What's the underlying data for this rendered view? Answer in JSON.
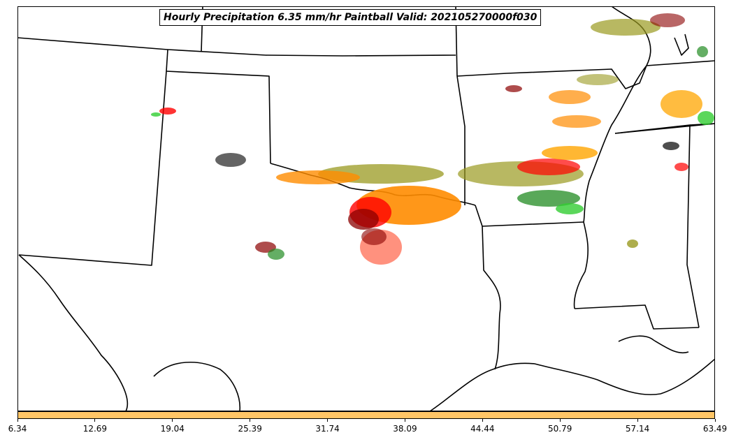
{
  "title": "Hourly Precipitation 6.35 mm/hr Paintball Valid: 202105270000f030",
  "colorbar": {
    "fill_color": "#ffc566",
    "tick_labels": [
      "6.34",
      "12.69",
      "19.04",
      "25.39",
      "31.74",
      "38.09",
      "44.44",
      "50.79",
      "57.14",
      "63.49"
    ]
  },
  "colors": {
    "member_palette": [
      "#ff8c00",
      "#ff0000",
      "#8b0000",
      "#9a9a20",
      "#228b22",
      "#32cd32",
      "#ffa500",
      "#ff6347",
      "#222222"
    ],
    "boundary": "#000000",
    "background": "#ffffff"
  }
}
